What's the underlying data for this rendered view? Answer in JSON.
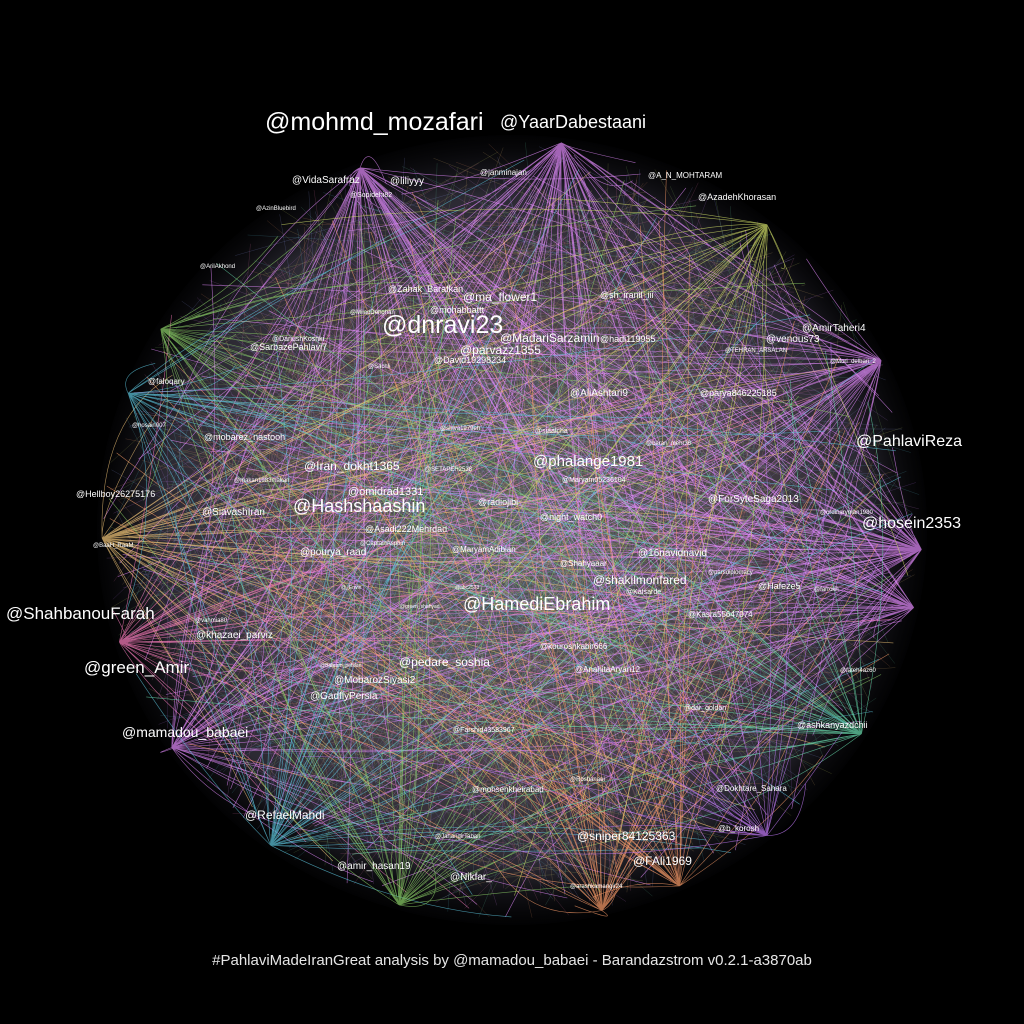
{
  "caption": "#PahlaviMadeIranGreat analysis by @mamadou_babaei - Barandazstrom v0.2.1-a3870ab",
  "colors": {
    "background": "#000000",
    "label": "#ffffff",
    "edge_palette": [
      "#e58bff",
      "#c77dff",
      "#8fd36a",
      "#5ec8e0",
      "#ff9f6b",
      "#f7c97a",
      "#ff7fbf",
      "#6be0b0",
      "#9aa8ff",
      "#d6e36a"
    ]
  },
  "labels": [
    {
      "text": "@mohmd_mozafari",
      "tier": 5
    },
    {
      "text": "@YaarDabestaani",
      "tier": 4
    },
    {
      "text": "@dnravi23",
      "tier": 5
    },
    {
      "text": "@ShahbanouFarah",
      "tier": 4
    },
    {
      "text": "@green_Amir",
      "tier": 4
    },
    {
      "text": "@PahlaviReza",
      "tier": 4
    },
    {
      "text": "@hosein2353",
      "tier": 4
    },
    {
      "text": "@HamediEbrahim",
      "tier": 4
    },
    {
      "text": "@Hashshaashin",
      "tier": 4
    },
    {
      "text": "@phalange1981",
      "tier": 3
    },
    {
      "text": "@mamadou_babaei",
      "tier": 3
    },
    {
      "text": "@ma_flower1",
      "tier": 2
    },
    {
      "text": "@parvazz1355",
      "tier": 2
    },
    {
      "text": "@MadariSarzamin",
      "tier": 2
    },
    {
      "text": "@Iran_dokht1365",
      "tier": 2
    },
    {
      "text": "@omidrad1331",
      "tier": 2
    },
    {
      "text": "@shakilmonfared",
      "tier": 2
    },
    {
      "text": "@sniper84125363",
      "tier": 2
    },
    {
      "text": "@pedare_soshia",
      "tier": 2
    },
    {
      "text": "@RefaelMahdi",
      "tier": 2
    },
    {
      "text": "@FAli1969",
      "tier": 2
    },
    {
      "text": "@VidaSarafraz",
      "tier": 1
    },
    {
      "text": "@liliyyy",
      "tier": 1
    },
    {
      "text": "@AmirTaheri4",
      "tier": 1
    },
    {
      "text": "@venous73",
      "tier": 1
    },
    {
      "text": "@AzadehKhorasan",
      "tier": 1
    },
    {
      "text": "@ForSyteSaga2013",
      "tier": 1
    },
    {
      "text": "@16navidnavid",
      "tier": 1
    },
    {
      "text": "@Hafeze5",
      "tier": 1
    },
    {
      "text": "@ashkanyazdchii",
      "tier": 1
    },
    {
      "text": "@SiavashIran",
      "tier": 1
    },
    {
      "text": "@pourya_raad",
      "tier": 1
    },
    {
      "text": "@khazaei_parviz",
      "tier": 1
    },
    {
      "text": "@MobarozSiyasi2",
      "tier": 1
    },
    {
      "text": "@GadflyPersia",
      "tier": 1
    },
    {
      "text": "@amir_hasan19",
      "tier": 1
    },
    {
      "text": "@Nikfar_",
      "tier": 1
    },
    {
      "text": "@AliAshtari9",
      "tier": 1
    },
    {
      "text": "@David19298234",
      "tier": 1
    },
    {
      "text": "@SarbazePahlavi7",
      "tier": 1
    },
    {
      "text": "@Zahak_Barafkan",
      "tier": 1
    },
    {
      "text": "@sh_iranil_iii",
      "tier": 1
    },
    {
      "text": "@radiojibi",
      "tier": 1
    },
    {
      "text": "@night_watch0",
      "tier": 1
    },
    {
      "text": "@Asadi222Mehrdad",
      "tier": 1
    },
    {
      "text": "@mobarez_nastooh",
      "tier": 1
    },
    {
      "text": "@parya846225185",
      "tier": 1
    },
    {
      "text": "@hadi119955",
      "tier": 1
    },
    {
      "text": "@mohabbattt",
      "tier": 1
    },
    {
      "text": "@Hellboy26275176",
      "tier": 1
    },
    {
      "text": "@faloqary",
      "tier": 1
    },
    {
      "text": "@janminajan",
      "tier": 1
    },
    {
      "text": "@A_N_MOHTARAM",
      "tier": 1
    },
    {
      "text": "@Shahyaaar",
      "tier": 1
    },
    {
      "text": "@MaryamAdibian",
      "tier": 1
    },
    {
      "text": "@kouroshkabir666",
      "tier": 1
    },
    {
      "text": "@AnahitaAryan12",
      "tier": 1
    },
    {
      "text": "@Farshid43583967",
      "tier": 1
    },
    {
      "text": "@mohsenkheirabad",
      "tier": 1
    },
    {
      "text": "@Dokhtare_Sahara",
      "tier": 1
    },
    {
      "text": "@b_korosh",
      "tier": 1
    },
    {
      "text": "@Kasra55647074",
      "tier": 1
    },
    {
      "text": "@dar_goldan",
      "tier": 1
    },
    {
      "text": "@Kafsarde",
      "tier": 1
    },
    {
      "text": "@Sopidehi82",
      "tier": 1
    },
    {
      "text": "@AzinBluebird",
      "tier": 1
    },
    {
      "text": "@ArilAkhond",
      "tier": 1
    },
    {
      "text": "@DariushKoshki",
      "tier": 1
    },
    {
      "text": "@MiladDehghan",
      "tier": 1
    },
    {
      "text": "@Sachli",
      "tier": 1
    },
    {
      "text": "@siaalcha",
      "tier": 1
    },
    {
      "text": "@TEHRAN_ARSALAN",
      "tier": 1
    },
    {
      "text": "@Mori_delbari_2",
      "tier": 1
    },
    {
      "text": "@ordinaryman1980",
      "tier": 1
    },
    {
      "text": "@shiva1979eh",
      "tier": 1
    },
    {
      "text": "@SETAPEH2538",
      "tier": 1
    },
    {
      "text": "@baran_mehr36",
      "tier": 1
    },
    {
      "text": "@Maryam05236104",
      "tier": 1
    },
    {
      "text": "@makan1983makan",
      "tier": 1
    },
    {
      "text": "@CaptainAsphin",
      "tier": 1
    },
    {
      "text": "@fateh4az60",
      "tier": 1
    },
    {
      "text": "@JahangirTaban",
      "tier": 1
    },
    {
      "text": "@arashkamangir24",
      "tier": 1
    },
    {
      "text": "@vahmia80",
      "tier": 1
    },
    {
      "text": "@BaaH_RaaM",
      "tier": 1
    },
    {
      "text": "@hosain007",
      "tier": 1
    },
    {
      "text": "@parsdiplomacy",
      "tier": 1
    },
    {
      "text": "@farrokh",
      "tier": 1
    },
    {
      "text": "@Babram_pefslan",
      "tier": 1
    },
    {
      "text": "@green_shahyad",
      "tier": 1
    },
    {
      "text": "@abc2573",
      "tier": 1
    },
    {
      "text": "@_Erwin",
      "tier": 1
    },
    {
      "text": "@Roshanaei",
      "tier": 1
    }
  ]
}
